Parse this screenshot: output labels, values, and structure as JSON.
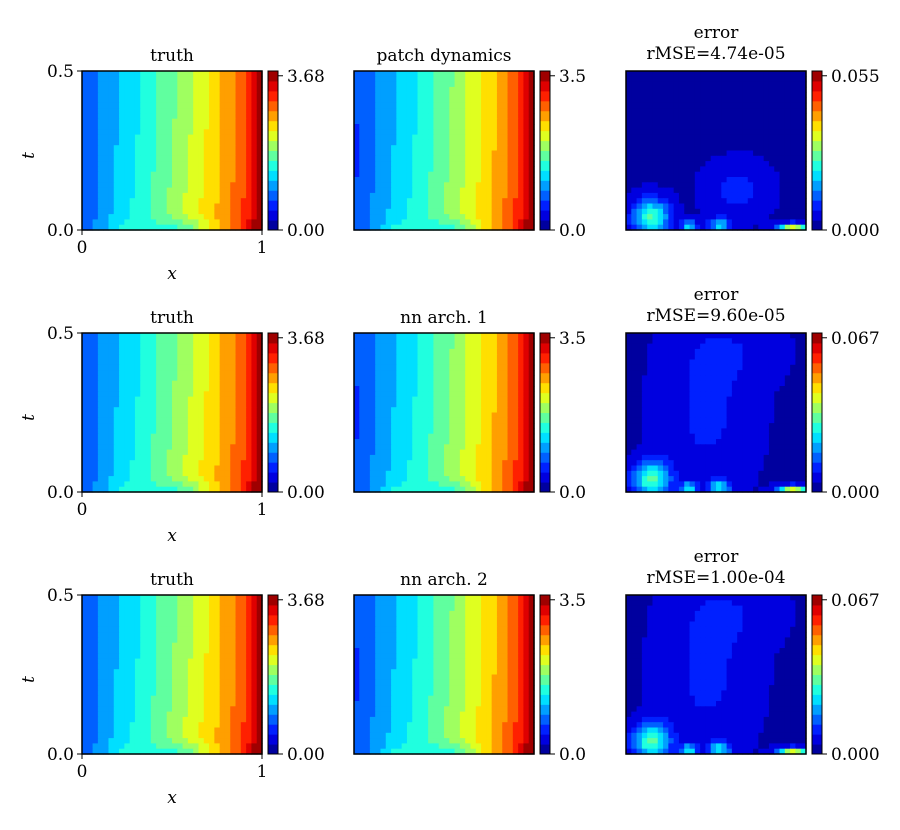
{
  "chart_data": [
    {
      "type": "heatmap",
      "title": "truth",
      "xlabel": "x",
      "ylabel": "t",
      "xlim": [
        0,
        1
      ],
      "ylim": [
        0.0,
        0.5
      ],
      "x_ticks": [
        "0",
        "1"
      ],
      "y_ticks": [
        "0.0",
        "0.5"
      ],
      "colorbar": {
        "min": 0,
        "max": 3.68,
        "tick_labels": [
          "0.00",
          "3.68"
        ]
      }
    },
    {
      "type": "heatmap",
      "title": "patch dynamics",
      "xlabel": "",
      "ylabel": "",
      "xlim": [
        0,
        1
      ],
      "ylim": [
        0.0,
        0.5
      ],
      "colorbar": {
        "min": 0,
        "max": 3.5,
        "tick_labels": [
          "0.0",
          "3.5"
        ]
      }
    },
    {
      "type": "heatmap",
      "title": "error",
      "subtitle": "rMSE=4.74e-05",
      "xlim": [
        0,
        1
      ],
      "ylim": [
        0.0,
        0.5
      ],
      "colorbar": {
        "min": 0,
        "max": 0.055,
        "tick_labels": [
          "0.000",
          "0.055"
        ]
      }
    },
    {
      "type": "heatmap",
      "title": "truth",
      "xlabel": "x",
      "ylabel": "t",
      "xlim": [
        0,
        1
      ],
      "ylim": [
        0.0,
        0.5
      ],
      "x_ticks": [
        "0",
        "1"
      ],
      "y_ticks": [
        "0.0",
        "0.5"
      ],
      "colorbar": {
        "min": 0,
        "max": 3.68,
        "tick_labels": [
          "0.00",
          "3.68"
        ]
      }
    },
    {
      "type": "heatmap",
      "title": "nn arch. 1",
      "xlim": [
        0,
        1
      ],
      "ylim": [
        0.0,
        0.5
      ],
      "colorbar": {
        "min": 0,
        "max": 3.5,
        "tick_labels": [
          "0.0",
          "3.5"
        ]
      }
    },
    {
      "type": "heatmap",
      "title": "error",
      "subtitle": "rMSE=9.60e-05",
      "xlim": [
        0,
        1
      ],
      "ylim": [
        0.0,
        0.5
      ],
      "colorbar": {
        "min": 0,
        "max": 0.067,
        "tick_labels": [
          "0.000",
          "0.067"
        ]
      }
    },
    {
      "type": "heatmap",
      "title": "truth",
      "xlabel": "x",
      "ylabel": "t",
      "xlim": [
        0,
        1
      ],
      "ylim": [
        0.0,
        0.5
      ],
      "x_ticks": [
        "0",
        "1"
      ],
      "y_ticks": [
        "0.0",
        "0.5"
      ],
      "colorbar": {
        "min": 0,
        "max": 3.68,
        "tick_labels": [
          "0.00",
          "3.68"
        ]
      }
    },
    {
      "type": "heatmap",
      "title": "nn arch. 2",
      "xlim": [
        0,
        1
      ],
      "ylim": [
        0.0,
        0.5
      ],
      "colorbar": {
        "min": 0,
        "max": 3.5,
        "tick_labels": [
          "0.0",
          "3.5"
        ]
      }
    },
    {
      "type": "heatmap",
      "title": "error",
      "subtitle": "rMSE=1.00e-04",
      "xlim": [
        0,
        1
      ],
      "ylim": [
        0.0,
        0.5
      ],
      "colorbar": {
        "min": 0,
        "max": 0.067,
        "tick_labels": [
          "0.000",
          "0.067"
        ]
      }
    }
  ],
  "colormap": "jet"
}
